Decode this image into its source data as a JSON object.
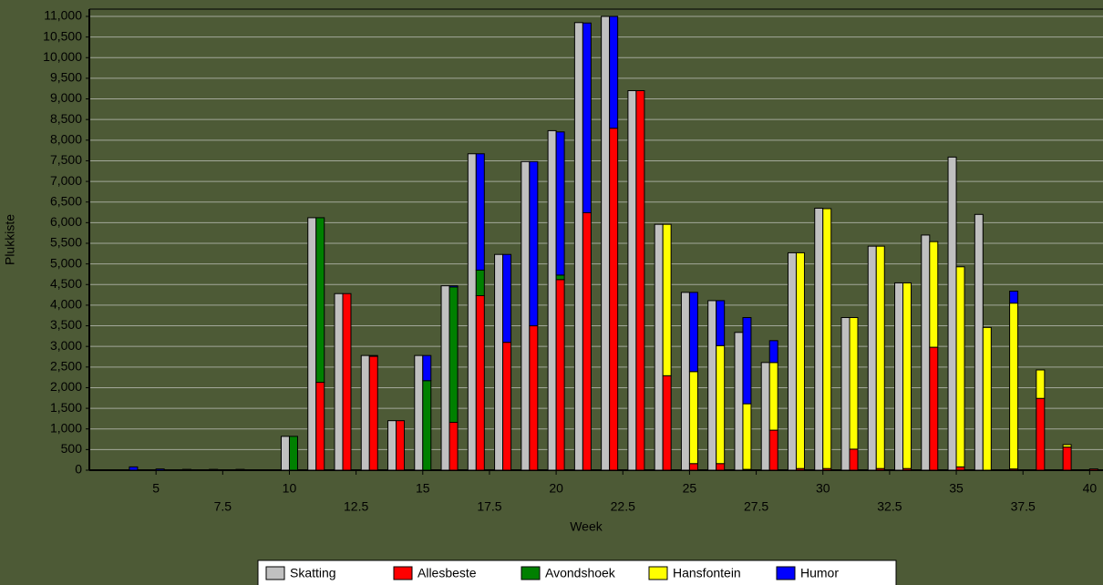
{
  "chart_data": {
    "type": "bar",
    "x_label": "Week",
    "y_label": "Plukkiste",
    "x": [
      4,
      5,
      6,
      7,
      8,
      9,
      10,
      11,
      12,
      13,
      14,
      15,
      16,
      17,
      18,
      19,
      20,
      21,
      22,
      23,
      24,
      25,
      26,
      27,
      28,
      29,
      30,
      31,
      32,
      33,
      34,
      35,
      36,
      37,
      38,
      39,
      40
    ],
    "series": [
      {
        "name": "Skatting",
        "color": "#c0c0c0",
        "values": [
          0,
          0,
          0,
          0,
          0,
          0,
          820,
          6120,
          4280,
          2780,
          1200,
          2780,
          4470,
          7670,
          5230,
          7480,
          8230,
          10850,
          11000,
          9200,
          5960,
          4310,
          4110,
          3340,
          2610,
          5270,
          6350,
          3700,
          5430,
          4540,
          5700,
          7590,
          6200,
          0,
          0,
          0,
          0
        ]
      },
      {
        "name": "Allesbeste",
        "color": "#ff0000",
        "values": [
          0,
          0,
          0,
          0,
          0,
          0,
          0,
          2130,
          4280,
          2760,
          1200,
          0,
          1160,
          4230,
          3100,
          3500,
          4620,
          6240,
          8290,
          9200,
          2290,
          160,
          160,
          20,
          970,
          40,
          40,
          510,
          40,
          40,
          2980,
          80,
          0,
          30,
          1740,
          560,
          30
        ]
      },
      {
        "name": "Avondshoek",
        "color": "#008000",
        "values": [
          0,
          0,
          0,
          0,
          0,
          0,
          820,
          3990,
          0,
          20,
          0,
          2170,
          3280,
          620,
          0,
          0,
          110,
          0,
          0,
          0,
          0,
          0,
          0,
          0,
          0,
          0,
          0,
          0,
          0,
          0,
          0,
          0,
          0,
          0,
          0,
          0,
          0
        ]
      },
      {
        "name": "Hansfontein",
        "color": "#ffff00",
        "values": [
          0,
          0,
          20,
          20,
          20,
          0,
          0,
          0,
          0,
          0,
          0,
          0,
          0,
          0,
          0,
          0,
          0,
          0,
          0,
          0,
          3670,
          2230,
          2860,
          1590,
          1640,
          5230,
          6300,
          3190,
          5390,
          4500,
          2560,
          4850,
          3460,
          4020,
          690,
          60,
          0
        ]
      },
      {
        "name": "Humor",
        "color": "#0000ff",
        "values": [
          80,
          30,
          0,
          0,
          0,
          0,
          0,
          0,
          0,
          0,
          0,
          610,
          30,
          2820,
          2130,
          3980,
          3470,
          4600,
          2710,
          0,
          0,
          1920,
          1090,
          2090,
          530,
          0,
          0,
          0,
          0,
          0,
          0,
          0,
          0,
          290,
          0,
          0,
          0
        ]
      }
    ],
    "xlim": [
      2.5,
      40.5
    ],
    "xticks": [
      5,
      7.5,
      10,
      12.5,
      15,
      17.5,
      20,
      22.5,
      25,
      27.5,
      30,
      32.5,
      35,
      37.5,
      40
    ],
    "ylim": [
      0,
      11000
    ],
    "yticks": [
      0,
      500,
      {
        "value": 1000,
        "label": "1,000"
      },
      {
        "value": 1500,
        "label": "1,500"
      },
      {
        "value": 2000,
        "label": "2,000"
      },
      {
        "value": 2500,
        "label": "2,500"
      },
      {
        "value": 3000,
        "label": "3,000"
      },
      {
        "value": 3500,
        "label": "3,500"
      },
      {
        "value": 4000,
        "label": "4,000"
      },
      {
        "value": 4500,
        "label": "4,500"
      },
      {
        "value": 5000,
        "label": "5,000"
      },
      {
        "value": 5500,
        "label": "5,500"
      },
      {
        "value": 6000,
        "label": "6,000"
      },
      {
        "value": 6500,
        "label": "6,500"
      },
      {
        "value": 7000,
        "label": "7,000"
      },
      {
        "value": 7500,
        "label": "7,500"
      },
      {
        "value": 8000,
        "label": "8,000"
      },
      {
        "value": 8500,
        "label": "8,500"
      },
      {
        "value": 9000,
        "label": "9,000"
      },
      {
        "value": 9500,
        "label": "9,500"
      },
      {
        "value": 10000,
        "label": "10,000"
      },
      {
        "value": 10500,
        "label": "10,500"
      },
      {
        "value": 11000,
        "label": "11,000"
      }
    ],
    "grid": true,
    "legend": "bottom"
  }
}
